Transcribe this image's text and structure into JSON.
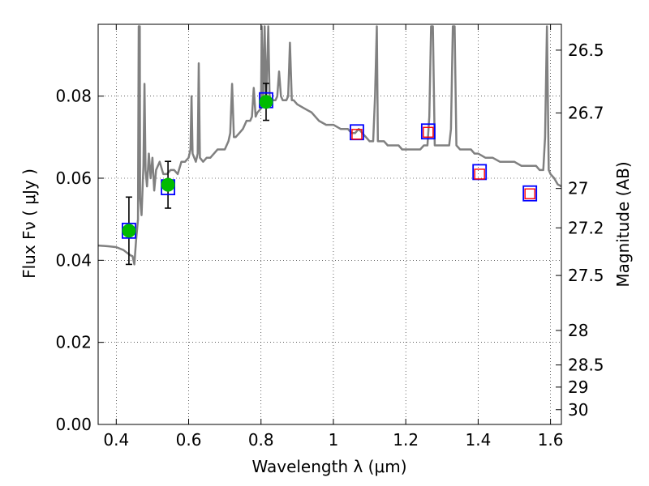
{
  "chart_data": {
    "type": "scatter",
    "xlabel": "Wavelength  λ (μm)",
    "ylabel": "Flux  Fν  ( μJy )",
    "y2label": "Magnitude (AB)",
    "xlim": [
      0.35,
      1.63
    ],
    "ylim": [
      0.0,
      0.0975
    ],
    "x_ticks": [
      0.4,
      0.6,
      0.8,
      1.0,
      1.2,
      1.4,
      1.6
    ],
    "x_tick_labels": [
      "0.4",
      "0.6",
      "0.8",
      "1",
      "1.2",
      "1.4",
      "1.6"
    ],
    "y_ticks": [
      0.0,
      0.02,
      0.04,
      0.06,
      0.08
    ],
    "y_tick_labels": [
      "0.00",
      "0.02",
      "0.04",
      "0.06",
      "0.08"
    ],
    "y2_ticks": [
      {
        "label": "26.5",
        "flux": 0.0912
      },
      {
        "label": "26.7",
        "flux": 0.0759
      },
      {
        "label": "27",
        "flux": 0.0575
      },
      {
        "label": "27.2",
        "flux": 0.0479
      },
      {
        "label": "27.5",
        "flux": 0.0363
      },
      {
        "label": "28",
        "flux": 0.0229
      },
      {
        "label": "28.5",
        "flux": 0.0145
      },
      {
        "label": "29",
        "flux": 0.0091
      },
      {
        "label": "30",
        "flux": 0.0036
      }
    ],
    "grid": true,
    "grid_style": "dotted",
    "colors": {
      "model": "#808080",
      "observed": "#00bb00",
      "model_box": "#0000ff",
      "predicted": "#ff0000",
      "errorbar": "#000000"
    },
    "series": [
      {
        "kind": "line",
        "points": [
          [
            0.35,
            0.0436
          ],
          [
            0.38,
            0.0434
          ],
          [
            0.4,
            0.0432
          ],
          [
            0.42,
            0.0425
          ],
          [
            0.43,
            0.0418
          ],
          [
            0.44,
            0.0412
          ],
          [
            0.445,
            0.041
          ],
          [
            0.45,
            0.039
          ],
          [
            0.455,
            0.045
          ],
          [
            0.458,
            0.048
          ],
          [
            0.46,
            0.05
          ],
          [
            0.462,
            0.097
          ],
          [
            0.465,
            0.097
          ],
          [
            0.466,
            0.055
          ],
          [
            0.47,
            0.051
          ],
          [
            0.475,
            0.063
          ],
          [
            0.478,
            0.083
          ],
          [
            0.481,
            0.062
          ],
          [
            0.485,
            0.058
          ],
          [
            0.49,
            0.066
          ],
          [
            0.495,
            0.06
          ],
          [
            0.5,
            0.065
          ],
          [
            0.505,
            0.057
          ],
          [
            0.51,
            0.062
          ],
          [
            0.52,
            0.064
          ],
          [
            0.53,
            0.061
          ],
          [
            0.54,
            0.061
          ],
          [
            0.55,
            0.062
          ],
          [
            0.56,
            0.062
          ],
          [
            0.57,
            0.061
          ],
          [
            0.58,
            0.064
          ],
          [
            0.59,
            0.064
          ],
          [
            0.6,
            0.065
          ],
          [
            0.605,
            0.067
          ],
          [
            0.608,
            0.08
          ],
          [
            0.611,
            0.066
          ],
          [
            0.62,
            0.064
          ],
          [
            0.625,
            0.066
          ],
          [
            0.628,
            0.088
          ],
          [
            0.631,
            0.065
          ],
          [
            0.64,
            0.064
          ],
          [
            0.65,
            0.065
          ],
          [
            0.66,
            0.065
          ],
          [
            0.67,
            0.066
          ],
          [
            0.68,
            0.067
          ],
          [
            0.69,
            0.067
          ],
          [
            0.7,
            0.067
          ],
          [
            0.71,
            0.069
          ],
          [
            0.715,
            0.071
          ],
          [
            0.72,
            0.083
          ],
          [
            0.725,
            0.07
          ],
          [
            0.73,
            0.07
          ],
          [
            0.74,
            0.071
          ],
          [
            0.75,
            0.072
          ],
          [
            0.755,
            0.073
          ],
          [
            0.76,
            0.074
          ],
          [
            0.77,
            0.074
          ],
          [
            0.775,
            0.075
          ],
          [
            0.78,
            0.082
          ],
          [
            0.785,
            0.075
          ],
          [
            0.79,
            0.076
          ],
          [
            0.8,
            0.077
          ],
          [
            0.802,
            0.097
          ],
          [
            0.806,
            0.078
          ],
          [
            0.81,
            0.097
          ],
          [
            0.814,
            0.078
          ],
          [
            0.82,
            0.097
          ],
          [
            0.824,
            0.079
          ],
          [
            0.83,
            0.079
          ],
          [
            0.84,
            0.079
          ],
          [
            0.845,
            0.08
          ],
          [
            0.85,
            0.086
          ],
          [
            0.855,
            0.08
          ],
          [
            0.86,
            0.079
          ],
          [
            0.87,
            0.079
          ],
          [
            0.875,
            0.08
          ],
          [
            0.88,
            0.093
          ],
          [
            0.885,
            0.079
          ],
          [
            0.89,
            0.079
          ],
          [
            0.9,
            0.078
          ],
          [
            0.92,
            0.077
          ],
          [
            0.94,
            0.076
          ],
          [
            0.96,
            0.074
          ],
          [
            0.98,
            0.073
          ],
          [
            1.0,
            0.073
          ],
          [
            1.02,
            0.072
          ],
          [
            1.03,
            0.072
          ],
          [
            1.04,
            0.072
          ],
          [
            1.05,
            0.071
          ],
          [
            1.06,
            0.071
          ],
          [
            1.07,
            0.072
          ],
          [
            1.08,
            0.071
          ],
          [
            1.09,
            0.07
          ],
          [
            1.1,
            0.069
          ],
          [
            1.11,
            0.069
          ],
          [
            1.115,
            0.08
          ],
          [
            1.12,
            0.097
          ],
          [
            1.123,
            0.069
          ],
          [
            1.13,
            0.069
          ],
          [
            1.14,
            0.069
          ],
          [
            1.15,
            0.068
          ],
          [
            1.16,
            0.068
          ],
          [
            1.17,
            0.068
          ],
          [
            1.18,
            0.068
          ],
          [
            1.19,
            0.067
          ],
          [
            1.2,
            0.067
          ],
          [
            1.21,
            0.067
          ],
          [
            1.22,
            0.067
          ],
          [
            1.23,
            0.067
          ],
          [
            1.24,
            0.067
          ],
          [
            1.25,
            0.068
          ],
          [
            1.26,
            0.068
          ],
          [
            1.265,
            0.075
          ],
          [
            1.27,
            0.097
          ],
          [
            1.275,
            0.097
          ],
          [
            1.28,
            0.068
          ],
          [
            1.29,
            0.068
          ],
          [
            1.3,
            0.068
          ],
          [
            1.31,
            0.068
          ],
          [
            1.32,
            0.068
          ],
          [
            1.325,
            0.072
          ],
          [
            1.33,
            0.097
          ],
          [
            1.335,
            0.097
          ],
          [
            1.34,
            0.068
          ],
          [
            1.35,
            0.067
          ],
          [
            1.36,
            0.067
          ],
          [
            1.37,
            0.067
          ],
          [
            1.38,
            0.067
          ],
          [
            1.39,
            0.066
          ],
          [
            1.4,
            0.066
          ],
          [
            1.42,
            0.065
          ],
          [
            1.44,
            0.065
          ],
          [
            1.46,
            0.064
          ],
          [
            1.48,
            0.064
          ],
          [
            1.5,
            0.064
          ],
          [
            1.52,
            0.063
          ],
          [
            1.54,
            0.063
          ],
          [
            1.56,
            0.063
          ],
          [
            1.57,
            0.062
          ],
          [
            1.58,
            0.062
          ],
          [
            1.585,
            0.07
          ],
          [
            1.59,
            0.097
          ],
          [
            1.595,
            0.062
          ],
          [
            1.6,
            0.061
          ],
          [
            1.61,
            0.06
          ],
          [
            1.62,
            0.0585
          ],
          [
            1.63,
            0.058
          ]
        ]
      },
      {
        "kind": "observed",
        "points": [
          {
            "x": 0.435,
            "y": 0.0472,
            "err": 0.0082
          },
          {
            "x": 0.543,
            "y": 0.0584,
            "err": 0.0057
          },
          {
            "x": 0.814,
            "y": 0.0786,
            "err": 0.0045
          }
        ]
      },
      {
        "kind": "model_box",
        "points": [
          {
            "x": 0.435,
            "y": 0.0472
          },
          {
            "x": 0.543,
            "y": 0.0578
          },
          {
            "x": 0.814,
            "y": 0.079
          },
          {
            "x": 1.065,
            "y": 0.0712
          },
          {
            "x": 1.262,
            "y": 0.0714
          },
          {
            "x": 1.404,
            "y": 0.0615
          },
          {
            "x": 1.543,
            "y": 0.0563
          }
        ]
      },
      {
        "kind": "predicted",
        "points": [
          {
            "x": 1.065,
            "y": 0.0707
          },
          {
            "x": 1.262,
            "y": 0.0712
          },
          {
            "x": 1.404,
            "y": 0.061
          },
          {
            "x": 1.543,
            "y": 0.0562
          }
        ]
      }
    ]
  }
}
